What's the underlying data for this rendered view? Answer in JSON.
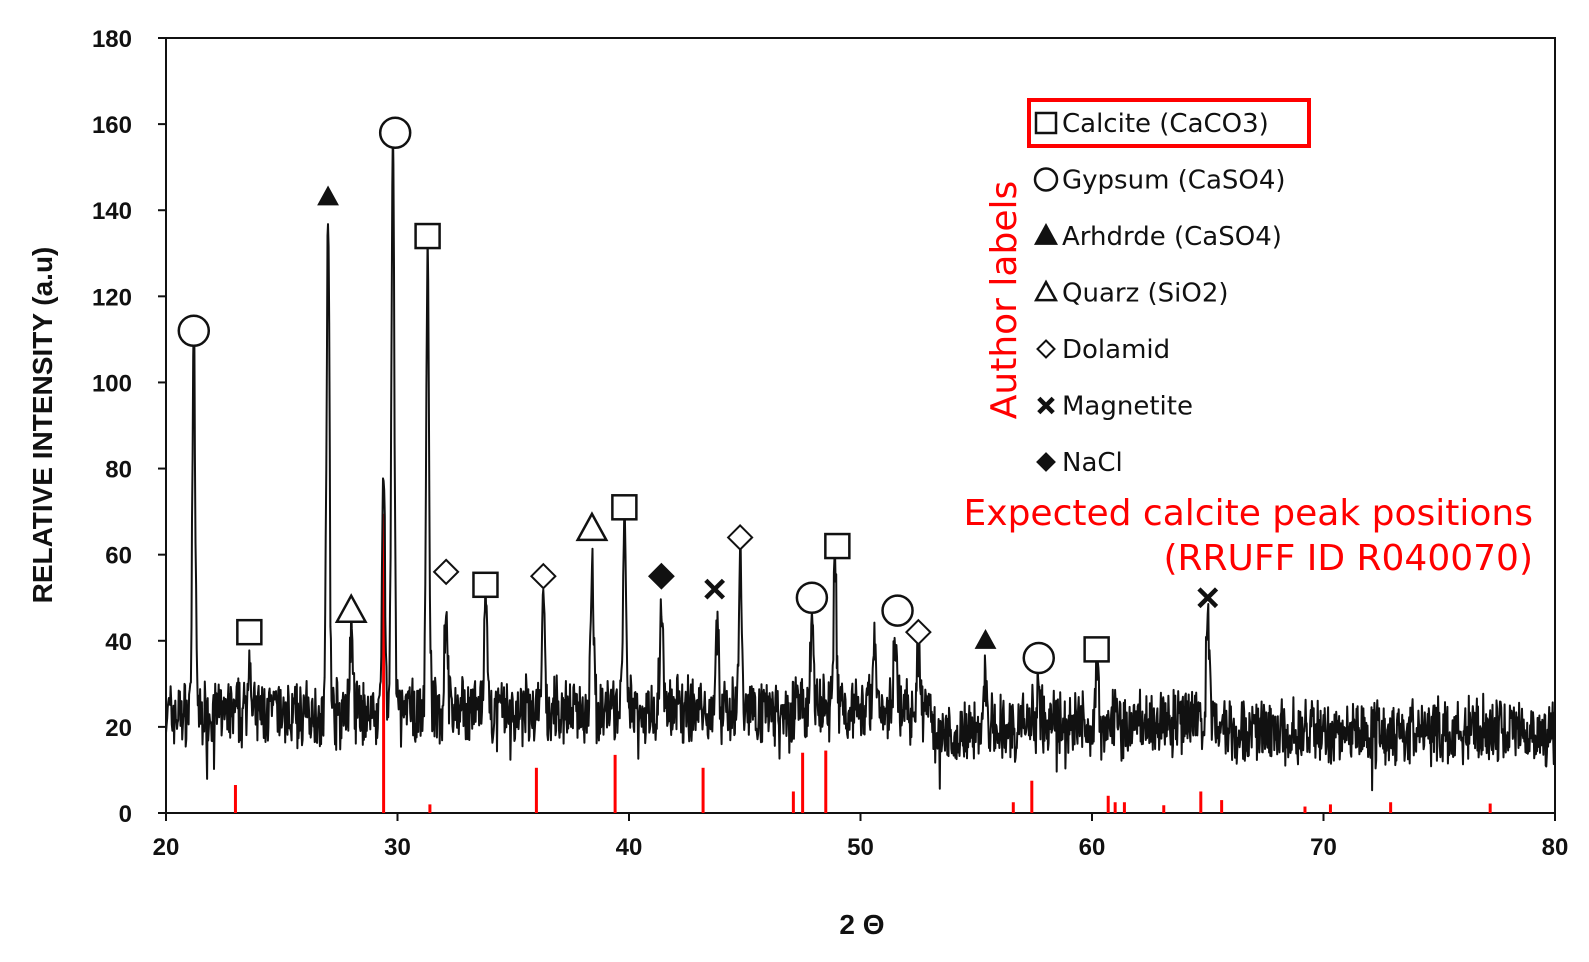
{
  "chart_data": {
    "type": "line",
    "xlabel": "2 Θ",
    "ylabel": "RELATIVE INTENSITY (a.u)",
    "xlim": [
      20,
      80
    ],
    "ylim": [
      0,
      180
    ],
    "xticks": [
      20,
      30,
      40,
      50,
      60,
      70,
      80
    ],
    "yticks": [
      0,
      20,
      40,
      60,
      80,
      100,
      120,
      140,
      160,
      180
    ],
    "grid": false,
    "legend_placement": "top-right",
    "colors": {
      "pattern": "#111111",
      "reference": "#ff0000",
      "annotation": "#ff0000"
    },
    "series": [
      {
        "name": "",
        "peaks": [
          {
            "x": 21.2,
            "y": 108
          },
          {
            "x": 23.6,
            "y": 37
          },
          {
            "x": 27.0,
            "y": 140
          },
          {
            "x": 28.0,
            "y": 42
          },
          {
            "x": 29.4,
            "y": 80
          },
          {
            "x": 29.8,
            "y": 155
          },
          {
            "x": 31.3,
            "y": 130
          },
          {
            "x": 32.1,
            "y": 50
          },
          {
            "x": 33.8,
            "y": 47
          },
          {
            "x": 36.3,
            "y": 48
          },
          {
            "x": 38.4,
            "y": 61
          },
          {
            "x": 39.8,
            "y": 67
          },
          {
            "x": 41.4,
            "y": 50
          },
          {
            "x": 43.8,
            "y": 44
          },
          {
            "x": 44.8,
            "y": 58
          },
          {
            "x": 47.9,
            "y": 44
          },
          {
            "x": 48.9,
            "y": 57
          },
          {
            "x": 50.6,
            "y": 42
          },
          {
            "x": 51.5,
            "y": 43
          },
          {
            "x": 52.5,
            "y": 37
          },
          {
            "x": 55.4,
            "y": 33
          },
          {
            "x": 57.7,
            "y": 31
          },
          {
            "x": 60.2,
            "y": 34
          },
          {
            "x": 65.0,
            "y": 46
          }
        ]
      }
    ],
    "reference_lines": {
      "name": "Expected calcite peak positions (RRUFF ID R040070)",
      "lines": [
        {
          "x": 23.0,
          "y": 6.5
        },
        {
          "x": 29.4,
          "y": 69.5
        },
        {
          "x": 31.4,
          "y": 2
        },
        {
          "x": 36.0,
          "y": 10.5
        },
        {
          "x": 39.4,
          "y": 13.5
        },
        {
          "x": 43.2,
          "y": 10.5
        },
        {
          "x": 47.1,
          "y": 5
        },
        {
          "x": 47.5,
          "y": 14
        },
        {
          "x": 48.5,
          "y": 14.5
        },
        {
          "x": 56.6,
          "y": 2.5
        },
        {
          "x": 57.4,
          "y": 7.5
        },
        {
          "x": 60.7,
          "y": 4
        },
        {
          "x": 61.0,
          "y": 2.5
        },
        {
          "x": 61.4,
          "y": 2.5
        },
        {
          "x": 63.1,
          "y": 1.8
        },
        {
          "x": 64.7,
          "y": 5
        },
        {
          "x": 65.6,
          "y": 3
        },
        {
          "x": 69.2,
          "y": 1.5
        },
        {
          "x": 70.3,
          "y": 2
        },
        {
          "x": 72.9,
          "y": 2.5
        },
        {
          "x": 77.2,
          "y": 2.2
        }
      ]
    },
    "markers": [
      {
        "x": 21.2,
        "y": 112,
        "symbol": "circle"
      },
      {
        "x": 23.6,
        "y": 42,
        "symbol": "square"
      },
      {
        "x": 27.0,
        "y": 143,
        "symbol": "filled-triangle"
      },
      {
        "x": 28.0,
        "y": 47,
        "symbol": "triangle"
      },
      {
        "x": 29.9,
        "y": 158,
        "symbol": "circle"
      },
      {
        "x": 31.3,
        "y": 134,
        "symbol": "square"
      },
      {
        "x": 32.1,
        "y": 56,
        "symbol": "diamond"
      },
      {
        "x": 33.8,
        "y": 53,
        "symbol": "square"
      },
      {
        "x": 36.3,
        "y": 55,
        "symbol": "diamond"
      },
      {
        "x": 38.4,
        "y": 66,
        "symbol": "triangle"
      },
      {
        "x": 39.8,
        "y": 71,
        "symbol": "square"
      },
      {
        "x": 41.4,
        "y": 55,
        "symbol": "filled-diamond"
      },
      {
        "x": 43.7,
        "y": 52,
        "symbol": "cross"
      },
      {
        "x": 44.8,
        "y": 64,
        "symbol": "diamond"
      },
      {
        "x": 47.9,
        "y": 50,
        "symbol": "circle"
      },
      {
        "x": 49.0,
        "y": 62,
        "symbol": "square"
      },
      {
        "x": 51.6,
        "y": 47,
        "symbol": "circle"
      },
      {
        "x": 52.5,
        "y": 42,
        "symbol": "diamond"
      },
      {
        "x": 55.4,
        "y": 40,
        "symbol": "filled-triangle"
      },
      {
        "x": 57.7,
        "y": 36,
        "symbol": "circle"
      },
      {
        "x": 60.2,
        "y": 38,
        "symbol": "square"
      },
      {
        "x": 65.0,
        "y": 50,
        "symbol": "cross"
      }
    ],
    "legend": [
      {
        "label": "Calcite (CaCO3)",
        "symbol": "square",
        "highlighted": true
      },
      {
        "label": "Gypsum (CaSO4)",
        "symbol": "circle"
      },
      {
        "label": "Arhdrde (CaSO4)",
        "symbol": "filled-triangle"
      },
      {
        "label": "Quarz (SiO2)",
        "symbol": "triangle"
      },
      {
        "label": "Dolamid",
        "symbol": "diamond"
      },
      {
        "label": "Magnetite",
        "symbol": "cross"
      },
      {
        "label": "NaCl",
        "symbol": "filled-diamond"
      }
    ],
    "annotations": {
      "author_labels": "Author labels",
      "expected_line1": "Expected calcite peak positions",
      "expected_line2": "(RRUFF ID R040070)"
    }
  }
}
